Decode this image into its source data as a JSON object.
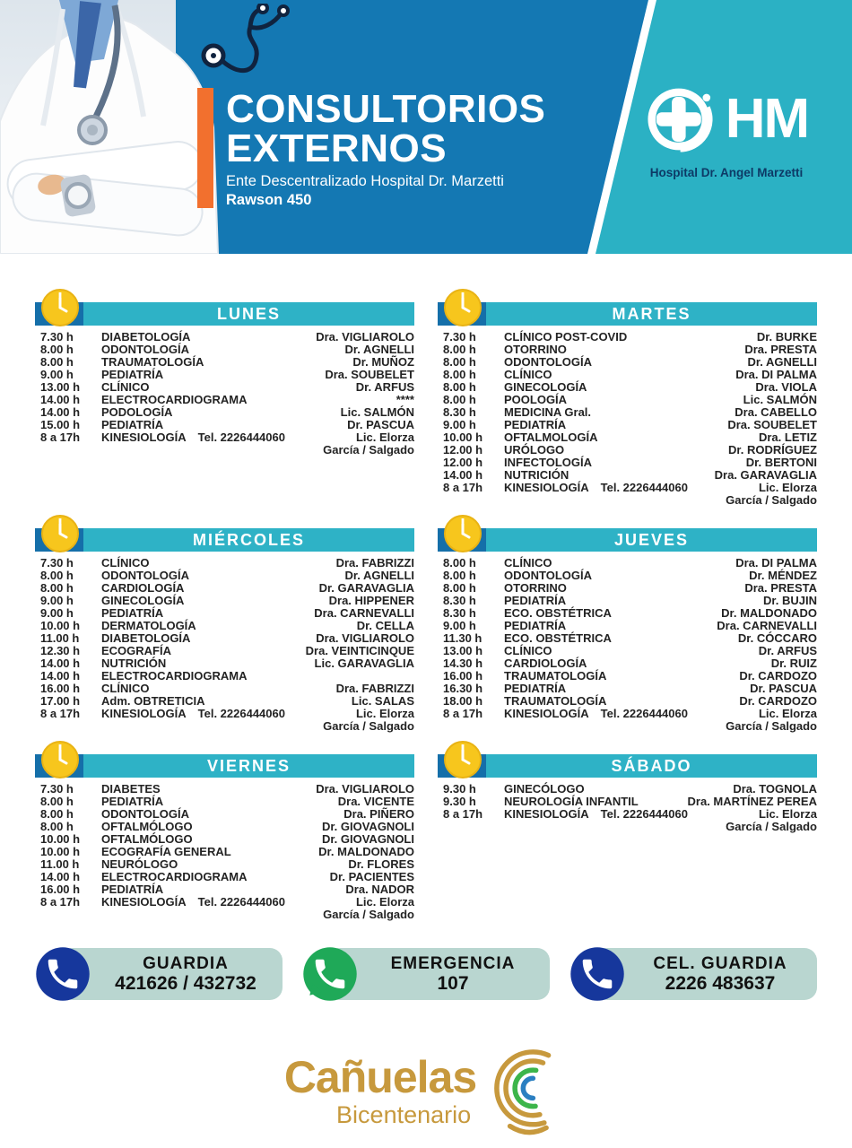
{
  "colors": {
    "blue": "#1478b3",
    "darkblue": "#156fa9",
    "teal": "#2bb1c4",
    "bar-teal": "#2eb2c6",
    "orange": "#f2702e",
    "clock-yellow": "#f7c61d",
    "pill-bg": "#b9d6d0",
    "phone-blue": "#16379c",
    "wa-green": "#1fa958",
    "gold": "#c7993d",
    "navy": "#0d3a66"
  },
  "header": {
    "title_line1": "CONSULTORIOS",
    "title_line2": "EXTERNOS",
    "subtitle": "Ente Descentralizado Hospital Dr. Marzetti",
    "address": "Rawson 450",
    "logo_acronym": "HM",
    "logo_name": "Hospital Dr. Angel Marzetti"
  },
  "days": [
    {
      "name": "LUNES",
      "rows": [
        {
          "t": "7.30  h",
          "s": "DIABETOLOGÍA",
          "d": "Dra. VIGLIAROLO"
        },
        {
          "t": "8.00  h",
          "s": "ODONTOLOGÍA",
          "d": "Dr. AGNELLI"
        },
        {
          "t": "8.00  h",
          "s": "TRAUMATOLOGÍA",
          "d": "Dr. MUÑOZ"
        },
        {
          "t": "9.00  h",
          "s": "PEDIATRÍA",
          "d": "Dra. SOUBELET"
        },
        {
          "t": "13.00 h",
          "s": "CLÍNICO",
          "d": "Dr. ARFUS"
        },
        {
          "t": "14.00 h",
          "s": "ELECTROCARDIOGRAMA",
          "d": "****"
        },
        {
          "t": "14.00 h",
          "s": "PODOLOGÍA",
          "d": "Lic. SALMÓN"
        },
        {
          "t": "15.00 h",
          "s": "PEDIATRÍA",
          "d": "Dr. PASCUA"
        },
        {
          "t": "8 a 17h",
          "s": "KINESIOLOGÍA",
          "tel": "Tel. 2226444060",
          "d": "Lic. Elorza",
          "d2": "García / Salgado"
        }
      ]
    },
    {
      "name": "MARTES",
      "rows": [
        {
          "t": "7.30 h",
          "s": "CLÍNICO POST-COVID",
          "d": "Dr. BURKE"
        },
        {
          "t": "8.00 h",
          "s": "OTORRINO",
          "d": "Dra. PRESTA"
        },
        {
          "t": "8.00 h",
          "s": "ODONTOLOGÍA",
          "d": "Dr. AGNELLI"
        },
        {
          "t": "8.00 h",
          "s": "CLÍNICO",
          "d": "Dra. DI PALMA"
        },
        {
          "t": "8.00 h",
          "s": "GINECOLOGÍA",
          "d": "Dra. VIOLA"
        },
        {
          "t": "8.00 h",
          "s": "POOLOGÍA",
          "d": "Lic. SALMÓN"
        },
        {
          "t": "8.30 h",
          "s": "MEDICINA Gral.",
          "d": "Dra. CABELLO"
        },
        {
          "t": "9.00 h",
          "s": "PEDIATRÍA",
          "d": "Dra. SOUBELET"
        },
        {
          "t": "10.00 h",
          "s": "OFTALMOLOGÍA",
          "d": "Dra. LETIZ"
        },
        {
          "t": "12.00 h",
          "s": "URÓLOGO",
          "d": "Dr. RODRÍGUEZ"
        },
        {
          "t": "12.00 h",
          "s": "INFECTOLOGÍA",
          "d": "Dr. BERTONI"
        },
        {
          "t": "14.00 h",
          "s": "NUTRICIÓN",
          "d": "Dra. GARAVAGLIA"
        },
        {
          "t": "8 a 17h",
          "s": "KINESIOLOGÍA",
          "tel": "Tel. 2226444060",
          "d": "Lic. Elorza",
          "d2": "García / Salgado"
        }
      ]
    },
    {
      "name": "MIÉRCOLES",
      "rows": [
        {
          "t": "7.30  h",
          "s": "CLÍNICO",
          "d": "Dra. FABRIZZI"
        },
        {
          "t": "8.00  h",
          "s": "ODONTOLOGÍA",
          "d": "Dr. AGNELLI"
        },
        {
          "t": "8.00  h",
          "s": "CARDIOLOGÍA",
          "d": "Dr. GARAVAGLIA"
        },
        {
          "t": "9.00  h",
          "s": "GINECOLOGÍA",
          "d": "Dra. HIPPENER"
        },
        {
          "t": "9.00  h",
          "s": "PEDIATRÍA",
          "d": "Dra. CARNEVALLI"
        },
        {
          "t": "10.00 h",
          "s": "DERMATOLOGÍA",
          "d": "Dr. CELLA"
        },
        {
          "t": "11.00 h",
          "s": "DIABETOLOGÍA",
          "d": "Dra. VIGLIAROLO"
        },
        {
          "t": "12.30 h",
          "s": "ECOGRAFÍA",
          "d": "Dra. VEINTICINQUE"
        },
        {
          "t": "14.00 h",
          "s": "NUTRICIÓN",
          "d": "Lic. GARAVAGLIA"
        },
        {
          "t": "14.00 h",
          "s": "ELECTROCARDIOGRAMA",
          "d": ""
        },
        {
          "t": "16.00 h",
          "s": "CLÍNICO",
          "d": "Dra. FABRIZZI"
        },
        {
          "t": "17.00 h",
          "s": "Adm. OBTRETICIA",
          "d": "Lic. SALAS"
        },
        {
          "t": "8 a 17h",
          "s": "KINESIOLOGÍA",
          "tel": "Tel. 2226444060",
          "d": "Lic. Elorza",
          "d2": "García / Salgado"
        }
      ]
    },
    {
      "name": "JUEVES",
      "rows": [
        {
          "t": "8.00  h",
          "s": "CLÍNICO",
          "d": "Dra. DI PALMA"
        },
        {
          "t": "8.00  h",
          "s": "ODONTOLOGÍA",
          "d": "Dr. MÉNDEZ"
        },
        {
          "t": "8.00  h",
          "s": "OTORRINO",
          "d": "Dra. PRESTA"
        },
        {
          "t": "8.30  h",
          "s": "PEDIATRÍA",
          "d": "Dr. BUJIN"
        },
        {
          "t": "8.30  h",
          "s": "ECO.  OBSTÉTRICA",
          "d": "Dr. MALDONADO"
        },
        {
          "t": "9.00  h",
          "s": "PEDIATRÍA",
          "d": "Dra. CARNEVALLI"
        },
        {
          "t": "11.30 h",
          "s": "ECO. OBSTÉTRICA",
          "d": "Dr. CÓCCARO"
        },
        {
          "t": "13.00 h",
          "s": "CLÍNICO",
          "d": "Dr. ARFUS"
        },
        {
          "t": "14.30 h",
          "s": "CARDIOLOGÍA",
          "d": "Dr. RUIZ"
        },
        {
          "t": "16.00 h",
          "s": "TRAUMATOLOGÍA",
          "d": "Dr. CARDOZO"
        },
        {
          "t": "16.30 h",
          "s": "PEDIATRÍA",
          "d": "Dr. PASCUA"
        },
        {
          "t": "18.00 h",
          "s": "TRAUMATOLOGÍA",
          "d": "Dr. CARDOZO"
        },
        {
          "t": "8 a 17h",
          "s": "KINESIOLOGÍA",
          "tel": "Tel. 2226444060",
          "d": "Lic. Elorza",
          "d2": "García / Salgado"
        }
      ]
    },
    {
      "name": "VIERNES",
      "rows": [
        {
          "t": "7.30  h",
          "s": "DIABETES",
          "d": "Dra. VIGLIAROLO"
        },
        {
          "t": "8.00  h",
          "s": "PEDIATRÍA",
          "d": "Dra. VICENTE"
        },
        {
          "t": "8.00  h",
          "s": "ODONTOLOGÍA",
          "d": "Dra. PIÑERO"
        },
        {
          "t": "8.00  h",
          "s": "OFTALMÓLOGO",
          "d": "Dr. GIOVAGNOLI"
        },
        {
          "t": "10.00 h",
          "s": "OFTALMÓLOGO",
          "d": "Dr. GIOVAGNOLI"
        },
        {
          "t": "10.00 h",
          "s": "ECOGRAFÍA GENERAL",
          "d": "Dr. MALDONADO"
        },
        {
          "t": "11.00 h",
          "s": "NEURÓLOGO",
          "d": "Dr. FLORES"
        },
        {
          "t": "14.00 h",
          "s": "ELECTROCARDIOGRAMA",
          "d": "Dr. PACIENTES"
        },
        {
          "t": "16.00 h",
          "s": "PEDIATRÍA",
          "d": "Dra. NADOR"
        },
        {
          "t": "8 a 17h",
          "s": "KINESIOLOGÍA",
          "tel": "Tel. 2226444060",
          "d": "Lic. Elorza",
          "d2": "García / Salgado"
        }
      ]
    },
    {
      "name": "SÁBADO",
      "rows": [
        {
          "t": "9.30  h",
          "s": "GINECÓLOGO",
          "d": "Dra. TOGNOLA"
        },
        {
          "t": "9.30  h",
          "s": "NEUROLOGÍA INFANTIL",
          "d": "Dra. MARTÍNEZ PEREA"
        },
        {
          "t": "8 a 17h",
          "s": "KINESIOLOGÍA",
          "tel": "Tel. 2226444060",
          "d": "Lic. Elorza",
          "d2": "García / Salgado"
        }
      ]
    }
  ],
  "contacts": [
    {
      "label": "GUARDIA",
      "number": "421626 / 432732",
      "icon": "phone-icon"
    },
    {
      "label": "EMERGENCIA",
      "number": "107",
      "icon": "whatsapp-icon"
    },
    {
      "label": "CEL. GUARDIA",
      "number": "2226 483637",
      "icon": "phone-icon"
    }
  ],
  "footer": {
    "city": "Cañuelas",
    "sub": "Bicentenario"
  }
}
